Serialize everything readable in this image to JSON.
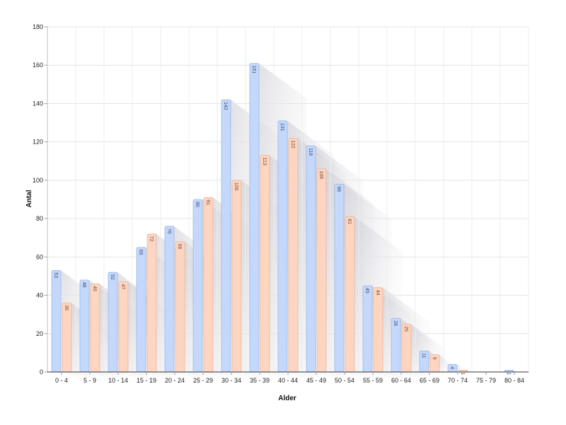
{
  "chart_data": {
    "type": "bar",
    "xlabel": "Alder",
    "ylabel": "Antal",
    "ylim": [
      0,
      180
    ],
    "yticks": [
      0,
      20,
      40,
      60,
      80,
      100,
      120,
      140,
      160,
      180
    ],
    "grid": true,
    "categories": [
      "0 - 4",
      "5 - 9",
      "10 - 14",
      "15 - 19",
      "20 - 24",
      "25 - 29",
      "30 - 34",
      "35 - 39",
      "40 - 44",
      "45 - 49",
      "50 - 54",
      "55 - 59",
      "60 - 64",
      "65 - 69",
      "70 - 74",
      "75 - 79",
      "80 - 84"
    ],
    "series": [
      {
        "values": [
          53,
          48,
          52,
          65,
          76,
          90,
          142,
          161,
          131,
          118,
          98,
          45,
          28,
          11,
          4,
          0,
          1
        ],
        "color": "#c4d8fb",
        "stroke": "#8aa9dd",
        "label_color": "#3a4f7a"
      },
      {
        "values": [
          36,
          46,
          47,
          72,
          68,
          91,
          100,
          113,
          122,
          106,
          81,
          44,
          25,
          9,
          1,
          0,
          0
        ],
        "color": "#fdd5c0",
        "stroke": "#e7a888",
        "label_color": "#7a4a33"
      }
    ]
  }
}
